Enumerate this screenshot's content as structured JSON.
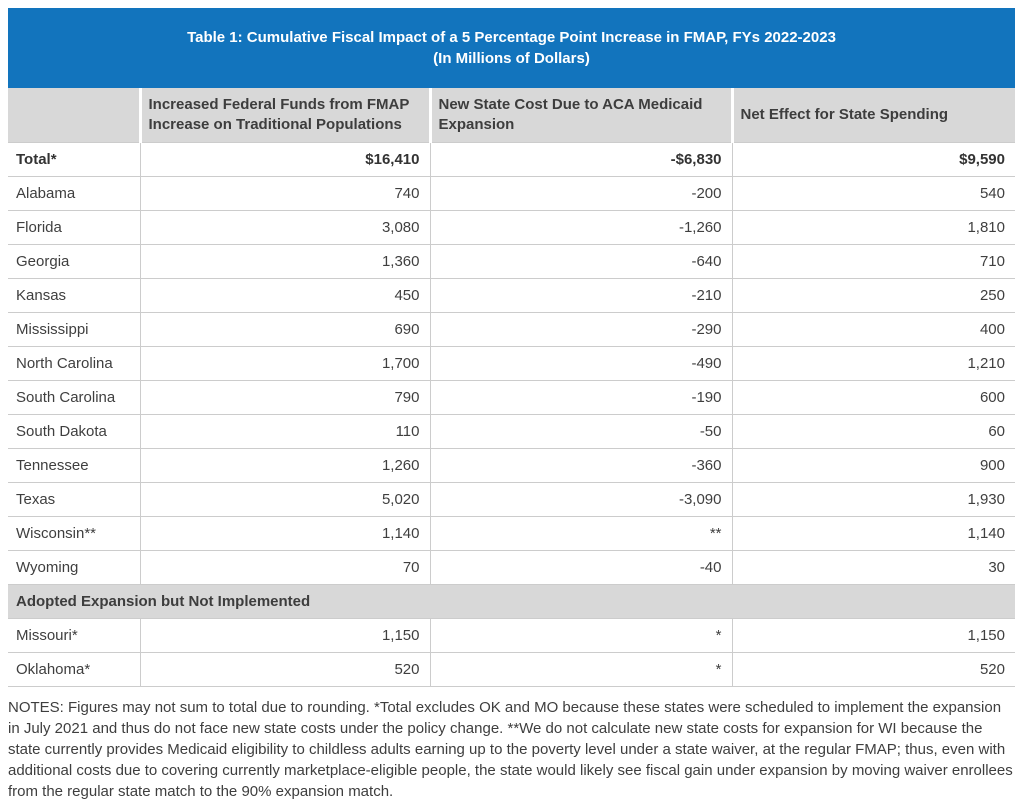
{
  "colors": {
    "title_bar_blue": "#1274BD",
    "header_gray": "#D8D8D8",
    "row_border_gray": "#CCCCCC",
    "body_text": "#3F3F3F",
    "title_text": "#FFFFFF"
  },
  "table": {
    "title_line1": "Table 1: Cumulative Fiscal Impact of a 5 Percentage Point Increase in FMAP, FYs 2022-2023",
    "title_line2": "(In Millions of Dollars)",
    "columns": [
      "",
      "Increased Federal Funds from FMAP Increase on Traditional Populations",
      "New State Cost Due to ACA Medicaid Expansion",
      "Net Effect for State Spending"
    ],
    "total_row": {
      "label": "Total*",
      "values": [
        "$16,410",
        "-$6,830",
        "$9,590"
      ]
    },
    "rows": [
      {
        "label": "Alabama",
        "values": [
          "740",
          "-200",
          "540"
        ]
      },
      {
        "label": "Florida",
        "values": [
          "3,080",
          "-1,260",
          "1,810"
        ]
      },
      {
        "label": "Georgia",
        "values": [
          "1,360",
          "-640",
          "710"
        ]
      },
      {
        "label": "Kansas",
        "values": [
          "450",
          "-210",
          "250"
        ]
      },
      {
        "label": "Mississippi",
        "values": [
          "690",
          "-290",
          "400"
        ]
      },
      {
        "label": "North Carolina",
        "values": [
          "1,700",
          "-490",
          "1,210"
        ]
      },
      {
        "label": "South Carolina",
        "values": [
          "790",
          "-190",
          "600"
        ]
      },
      {
        "label": "South Dakota",
        "values": [
          "110",
          "-50",
          "60"
        ]
      },
      {
        "label": "Tennessee",
        "values": [
          "1,260",
          "-360",
          "900"
        ]
      },
      {
        "label": "Texas",
        "values": [
          "5,020",
          "-3,090",
          "1,930"
        ]
      },
      {
        "label": "Wisconsin**",
        "values": [
          "1,140",
          "**",
          "1,140"
        ]
      },
      {
        "label": "Wyoming",
        "values": [
          "70",
          "-40",
          "30"
        ]
      }
    ],
    "section_header": "Adopted Expansion but Not Implemented",
    "section_rows": [
      {
        "label": "Missouri*",
        "values": [
          "1,150",
          "*",
          "1,150"
        ]
      },
      {
        "label": "Oklahoma*",
        "values": [
          "520",
          "*",
          "520"
        ]
      }
    ],
    "notes": "NOTES: Figures may not sum to total due to rounding. *Total excludes OK and MO because these states were scheduled to implement the expansion in July 2021 and thus do not face new state costs under the policy change. **We do not calculate new state costs for expansion for WI because the state currently provides Medicaid eligibility to childless adults earning up to the poverty level under a state waiver, at the regular FMAP; thus, even with additional costs due to covering currently marketplace-eligible people, the state would likely see fiscal gain under expansion by moving waiver enrollees from the regular state match to the 90% expansion match."
  },
  "chart_data": {
    "type": "table",
    "title": "Table 1: Cumulative Fiscal Impact of a 5 Percentage Point Increase in FMAP, FYs 2022-2023",
    "subtitle": "(In Millions of Dollars)",
    "columns": [
      "",
      "Increased Federal Funds from FMAP Increase on Traditional Populations",
      "New State Cost Due to ACA Medicaid Expansion",
      "Net Effect for State Spending"
    ],
    "rows": [
      [
        "Total*",
        "$16,410",
        "-$6,830",
        "$9,590"
      ],
      [
        "Alabama",
        "740",
        "-200",
        "540"
      ],
      [
        "Florida",
        "3,080",
        "-1,260",
        "1,810"
      ],
      [
        "Georgia",
        "1,360",
        "-640",
        "710"
      ],
      [
        "Kansas",
        "450",
        "-210",
        "250"
      ],
      [
        "Mississippi",
        "690",
        "-290",
        "400"
      ],
      [
        "North Carolina",
        "1,700",
        "-490",
        "1,210"
      ],
      [
        "South Carolina",
        "790",
        "-190",
        "600"
      ],
      [
        "South Dakota",
        "110",
        "-50",
        "60"
      ],
      [
        "Tennessee",
        "1,260",
        "-360",
        "900"
      ],
      [
        "Texas",
        "5,020",
        "-3,090",
        "1,930"
      ],
      [
        "Wisconsin**",
        "1,140",
        "**",
        "1,140"
      ],
      [
        "Wyoming",
        "70",
        "-40",
        "30"
      ],
      [
        "Adopted Expansion but Not Implemented",
        "",
        "",
        ""
      ],
      [
        "Missouri*",
        "1,150",
        "*",
        "1,150"
      ],
      [
        "Oklahoma*",
        "520",
        "*",
        "520"
      ]
    ],
    "notes": "NOTES: Figures may not sum to total due to rounding. *Total excludes OK and MO because these states were scheduled to implement the expansion in July 2021 and thus do not face new state costs under the policy change. **We do not calculate new state costs for expansion for WI because the state currently provides Medicaid eligibility to childless adults earning up to the poverty level under a state waiver, at the regular FMAP; thus, even with additional costs due to covering currently marketplace-eligible people, the state would likely see fiscal gain under expansion by moving waiver enrollees from the regular state match to the 90% expansion match."
  }
}
